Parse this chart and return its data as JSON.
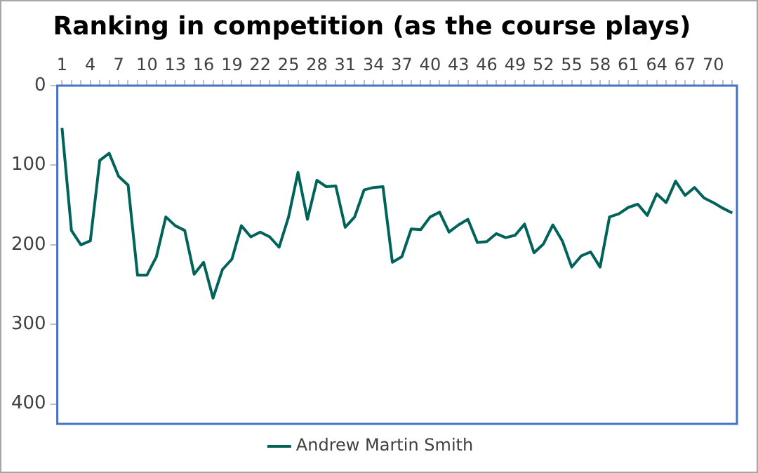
{
  "chart_data": {
    "type": "line",
    "title": "Ranking in competition (as the course plays)",
    "categories": [
      "1",
      null,
      null,
      "4",
      null,
      null,
      "7",
      null,
      null,
      "10",
      null,
      null,
      "13",
      null,
      null,
      "16",
      null,
      null,
      "19",
      null,
      null,
      "22",
      null,
      null,
      "25",
      null,
      null,
      "28",
      null,
      null,
      "31",
      null,
      null,
      "34",
      null,
      null,
      "37",
      null,
      null,
      "40",
      null,
      null,
      "43",
      null,
      null,
      "46",
      null,
      null,
      "49",
      null,
      null,
      "52",
      null,
      null,
      "55",
      null,
      null,
      "58",
      null,
      null,
      "61",
      null,
      null,
      "64",
      null,
      null,
      "67",
      null,
      null,
      "70",
      null,
      null
    ],
    "series": [
      {
        "name": "Andrew Martin Smith",
        "color": "#00635a",
        "values": [
          53,
          182,
          200,
          195,
          94,
          85,
          114,
          125,
          238,
          238,
          215,
          165,
          176,
          182,
          237,
          222,
          267,
          231,
          218,
          176,
          190,
          184,
          190,
          203,
          165,
          109,
          168,
          119,
          127,
          126,
          178,
          165,
          131,
          128,
          127,
          222,
          215,
          180,
          181,
          165,
          159,
          184,
          175,
          168,
          197,
          196,
          186,
          191,
          188,
          174,
          210,
          199,
          175,
          195,
          228,
          214,
          209,
          228,
          165,
          161,
          153,
          149,
          163,
          136,
          147,
          120,
          138,
          128,
          141,
          147,
          154,
          160
        ]
      }
    ],
    "ylim": [
      425,
      0
    ],
    "yticks": [
      0,
      100,
      200,
      300,
      400
    ],
    "grid": false,
    "legend": "bottom",
    "marker": "none",
    "line_style": "solid"
  }
}
